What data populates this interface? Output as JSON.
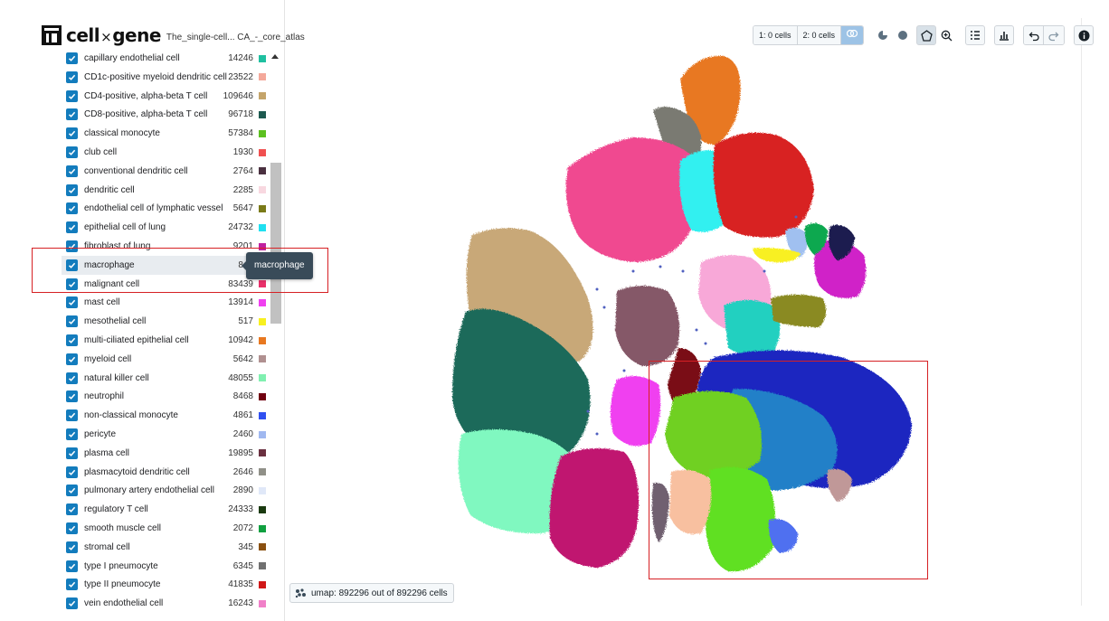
{
  "app": {
    "name_prefix": "cell",
    "name_x": "×",
    "name_suffix": "gene",
    "dataset_title": "The_single-cell... CA_-_core_atlas"
  },
  "categories": [
    {
      "label": "capillary endothelial cell",
      "count": "14246",
      "color": "#1fc0a0"
    },
    {
      "label": "CD1c-positive myeloid dendritic cell",
      "count": "23522",
      "color": "#f4a89a"
    },
    {
      "label": "CD4-positive, alpha-beta T cell",
      "count": "109646",
      "color": "#c4a46a"
    },
    {
      "label": "CD8-positive, alpha-beta T cell",
      "count": "96718",
      "color": "#1d5a50"
    },
    {
      "label": "classical monocyte",
      "count": "57384",
      "color": "#5cc020"
    },
    {
      "label": "club cell",
      "count": "1930",
      "color": "#f05050"
    },
    {
      "label": "conventional dendritic cell",
      "count": "2764",
      "color": "#4a3040"
    },
    {
      "label": "dendritic cell",
      "count": "2285",
      "color": "#f8d8e0"
    },
    {
      "label": "endothelial cell of lymphatic vessel",
      "count": "5647",
      "color": "#7a7a18"
    },
    {
      "label": "epithelial cell of lung",
      "count": "24732",
      "color": "#20e0f0"
    },
    {
      "label": "fibroblast of lung",
      "count": "9201",
      "color": "#c020a0"
    },
    {
      "label": "macrophage",
      "count": "840",
      "color": "#2040c0"
    },
    {
      "label": "malignant cell",
      "count": "83439",
      "color": "#e8306a"
    },
    {
      "label": "mast cell",
      "count": "13914",
      "color": "#f040f0"
    },
    {
      "label": "mesothelial cell",
      "count": "517",
      "color": "#f8f020"
    },
    {
      "label": "multi-ciliated epithelial cell",
      "count": "10942",
      "color": "#e87820"
    },
    {
      "label": "myeloid cell",
      "count": "5642",
      "color": "#b09090"
    },
    {
      "label": "natural killer cell",
      "count": "48055",
      "color": "#80f0b0"
    },
    {
      "label": "neutrophil",
      "count": "8468",
      "color": "#700010"
    },
    {
      "label": "non-classical monocyte",
      "count": "4861",
      "color": "#3050f0"
    },
    {
      "label": "pericyte",
      "count": "2460",
      "color": "#a0b8f0"
    },
    {
      "label": "plasma cell",
      "count": "19895",
      "color": "#6a3040"
    },
    {
      "label": "plasmacytoid dendritic cell",
      "count": "2646",
      "color": "#909088"
    },
    {
      "label": "pulmonary artery endothelial cell",
      "count": "2890",
      "color": "#e0e8f8"
    },
    {
      "label": "regulatory T cell",
      "count": "24333",
      "color": "#1a3a10"
    },
    {
      "label": "smooth muscle cell",
      "count": "2072",
      "color": "#10a040"
    },
    {
      "label": "stromal cell",
      "count": "345",
      "color": "#8a5010"
    },
    {
      "label": "type I pneumocyte",
      "count": "6345",
      "color": "#707070"
    },
    {
      "label": "type II pneumocyte",
      "count": "41835",
      "color": "#d01818"
    },
    {
      "label": "vein endothelial cell",
      "count": "16243",
      "color": "#f080c8"
    }
  ],
  "tooltip": "macrophage",
  "toolbar": {
    "cellset1": "1: 0 cells",
    "cellset2": "2: 0 cells",
    "icons": [
      "venn-icon",
      "paint-icon",
      "circle-icon",
      "lasso-icon",
      "zoom-icon",
      "list-icon",
      "histogram-icon",
      "undo-icon",
      "redo-icon",
      "info-icon"
    ]
  },
  "embedding": {
    "status": "umap: 892296 out of 892296 cells"
  }
}
